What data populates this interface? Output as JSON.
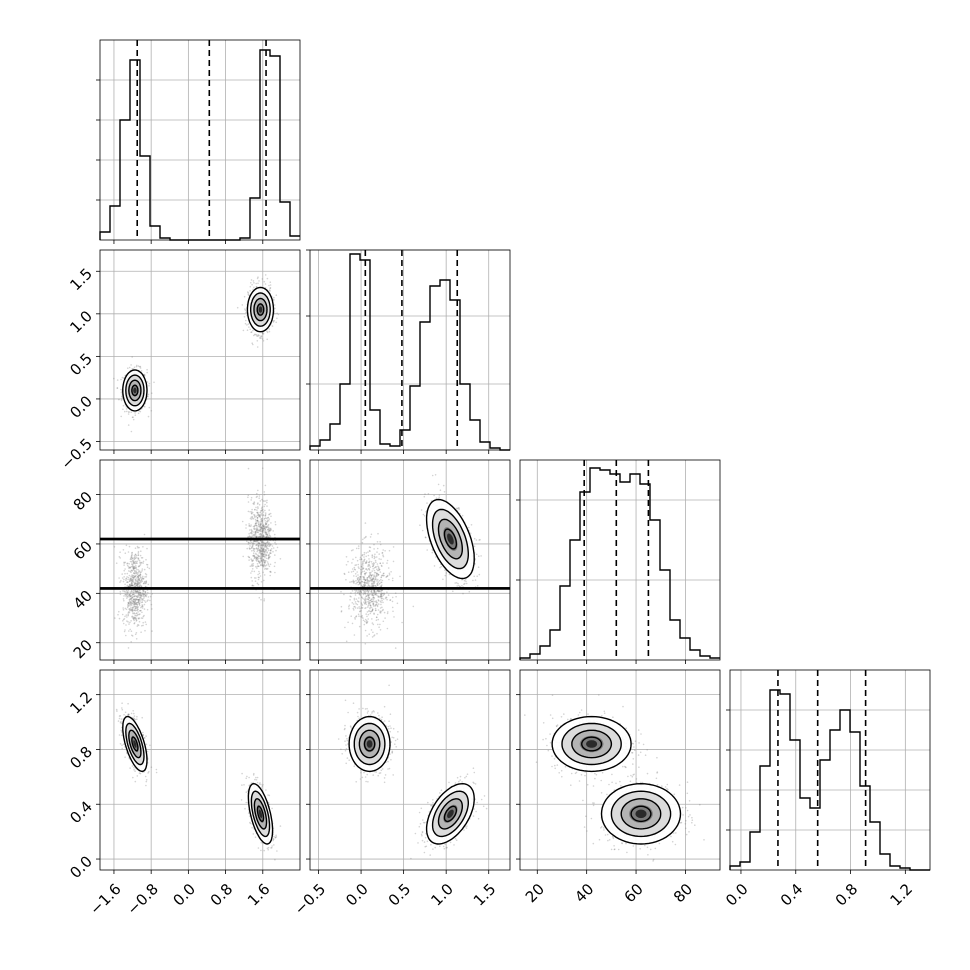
{
  "chart_data": {
    "type": "corner",
    "style": {
      "grid": true,
      "line_color": "#000000",
      "grid_color": "#b0b0b0",
      "scatter_color": "#808080",
      "background": "#ffffff"
    },
    "parameters": [
      {
        "range": [
          -1.9,
          2.4
        ],
        "ticks": [
          -1.6,
          -0.8,
          0.0,
          0.8,
          1.6
        ],
        "tick_labels": [
          "−1.6",
          "−0.8",
          "0.0",
          "0.8",
          "1.6"
        ],
        "quantiles": [
          -1.1,
          0.45,
          1.67
        ],
        "histogram": {
          "edges_start": -1.9,
          "bin_width": 0.215,
          "counts": [
            0.04,
            0.17,
            0.6,
            0.9,
            0.42,
            0.07,
            0.01,
            0,
            0,
            0,
            0,
            0,
            0,
            0,
            0.01,
            0.21,
            0.95,
            0.92,
            0.19,
            0.02
          ],
          "ymax": 1.0,
          "ygrid": [
            0.2,
            0.4,
            0.6,
            0.8
          ]
        }
      },
      {
        "range": [
          -0.6,
          1.75
        ],
        "ticks": [
          -0.5,
          0.0,
          0.5,
          1.0,
          1.5
        ],
        "tick_labels": [
          "−0.5",
          "0.0",
          "0.5",
          "1.0",
          "1.5"
        ],
        "quantiles": [
          0.05,
          0.48,
          1.13
        ],
        "histogram": {
          "edges_start": -0.6,
          "bin_width": 0.1175,
          "counts": [
            0.02,
            0.05,
            0.13,
            0.33,
            0.98,
            0.95,
            0.2,
            0.03,
            0.02,
            0.1,
            0.32,
            0.64,
            0.82,
            0.85,
            0.75,
            0.33,
            0.15,
            0.04,
            0.01,
            0
          ],
          "ymax": 1.0,
          "ygrid": [
            0.33,
            0.67,
            1.0
          ]
        }
      },
      {
        "range": [
          13,
          94
        ],
        "ticks": [
          20,
          40,
          60,
          80
        ],
        "tick_labels": [
          "20",
          "40",
          "60",
          "80"
        ],
        "quantiles": [
          39,
          52,
          65
        ],
        "histogram": {
          "edges_start": 13,
          "bin_width": 4.05,
          "counts": [
            0.01,
            0.03,
            0.07,
            0.15,
            0.37,
            0.6,
            0.84,
            0.96,
            0.95,
            0.93,
            0.89,
            0.93,
            0.88,
            0.7,
            0.45,
            0.2,
            0.11,
            0.05,
            0.02,
            0.01
          ],
          "ymax": 1.0,
          "ygrid": [
            0.4,
            0.8
          ]
        }
      },
      {
        "range": [
          -0.08,
          1.38
        ],
        "ticks": [
          0.0,
          0.4,
          0.8,
          1.2
        ],
        "tick_labels": [
          "0.0",
          "0.4",
          "0.8",
          "1.2"
        ],
        "quantiles": [
          0.27,
          0.56,
          0.91
        ],
        "histogram": {
          "edges_start": -0.08,
          "bin_width": 0.073,
          "counts": [
            0.02,
            0.04,
            0.19,
            0.52,
            0.9,
            0.88,
            0.65,
            0.36,
            0.31,
            0.55,
            0.7,
            0.8,
            0.69,
            0.42,
            0.24,
            0.08,
            0.02,
            0.01,
            0,
            0
          ],
          "ymax": 1.0,
          "ygrid": [
            0.2,
            0.4,
            0.6,
            0.8
          ]
        }
      }
    ],
    "modes": [
      {
        "weight": 0.5,
        "mean": [
          -1.15,
          0.1,
          42,
          0.84
        ],
        "sd": [
          0.13,
          0.12,
          8,
          0.1
        ],
        "corr": {
          "0-3": -0.6,
          "1-3": 0.0,
          "2-3": 0.0,
          "0-2": 0.0,
          "1-2": 0.0,
          "0-1": 0.0
        }
      },
      {
        "weight": 0.5,
        "mean": [
          1.55,
          1.05,
          62,
          0.33
        ],
        "sd": [
          0.13,
          0.14,
          8,
          0.11
        ],
        "corr": {
          "0-3": -0.55,
          "1-3": 0.5,
          "1-2": -0.5,
          "0-2": 0.0,
          "2-3": 0.0,
          "0-1": 0.0
        }
      }
    ]
  }
}
